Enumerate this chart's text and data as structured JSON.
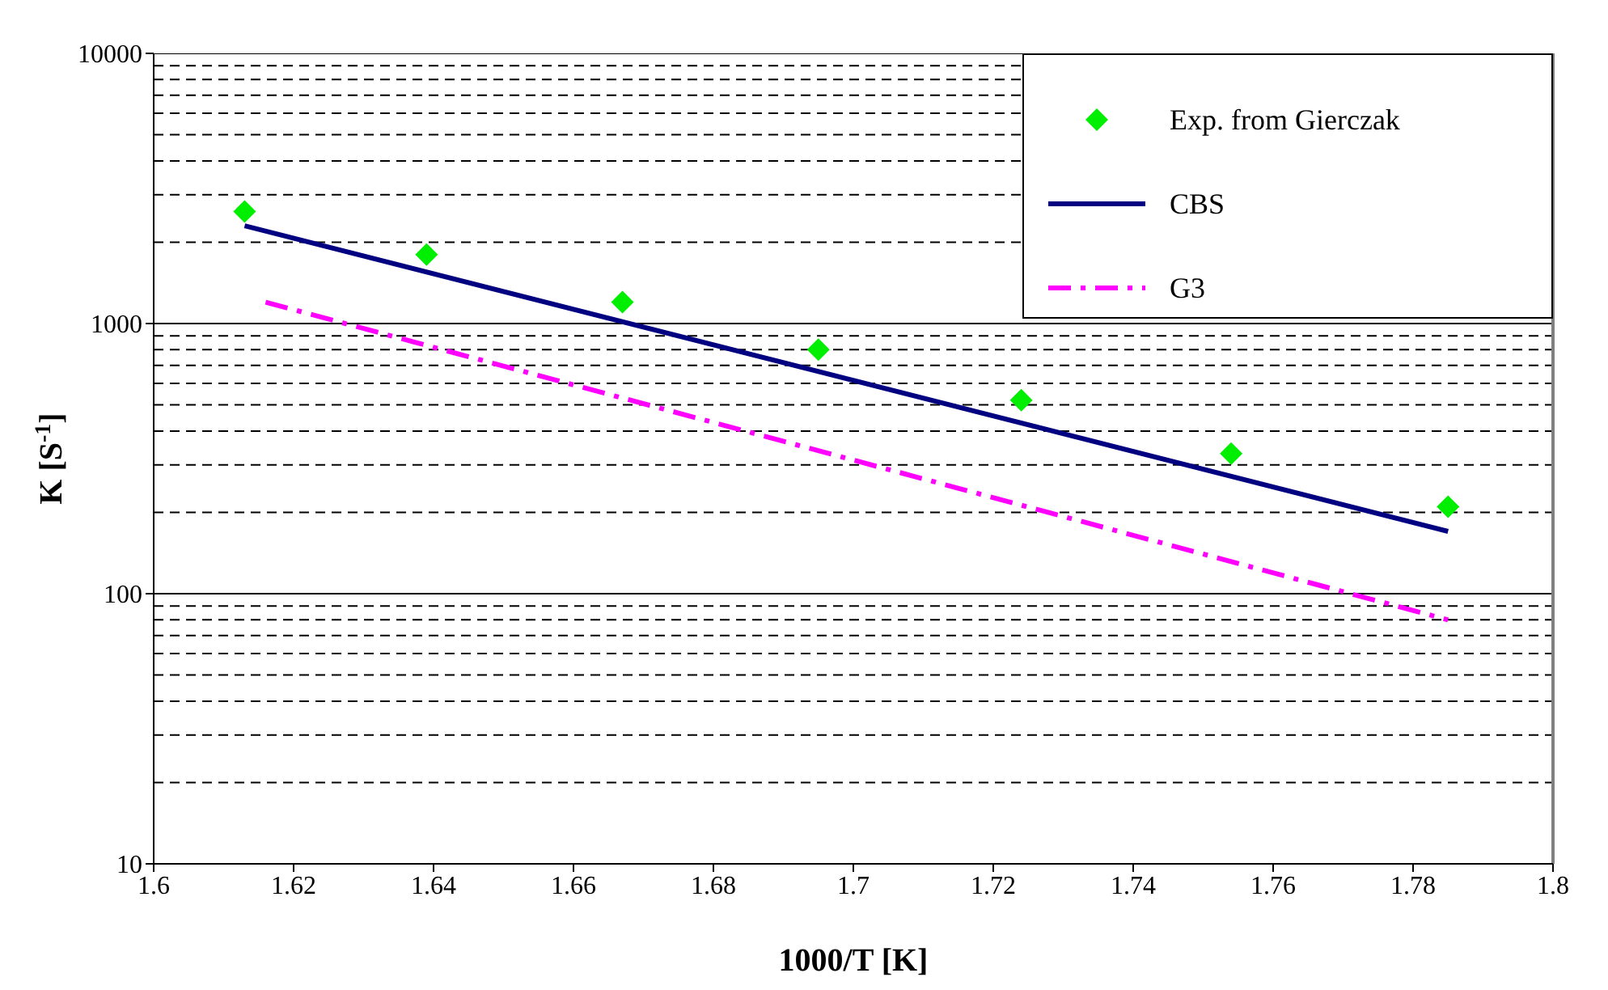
{
  "chart_data": {
    "type": "line",
    "xlabel": "1000/T [K]",
    "ylabel": "K [S$^{-1}$]",
    "xlim": [
      1.6,
      1.8
    ],
    "xticks": [
      1.6,
      1.62,
      1.64,
      1.66,
      1.68,
      1.7,
      1.72,
      1.74,
      1.76,
      1.78,
      1.8
    ],
    "log": "y",
    "ylim": [
      10,
      10000
    ],
    "yticks": [
      10,
      {
        "value": 20,
        "label": null
      },
      {
        "value": 30,
        "label": null
      },
      {
        "value": 40,
        "label": null
      },
      {
        "value": 50,
        "label": null
      },
      {
        "value": 60,
        "label": null
      },
      {
        "value": 70,
        "label": null
      },
      {
        "value": 80,
        "label": null
      },
      {
        "value": 90,
        "label": null
      },
      100,
      {
        "value": 200,
        "label": null
      },
      {
        "value": 300,
        "label": null
      },
      {
        "value": 400,
        "label": null
      },
      {
        "value": 500,
        "label": null
      },
      {
        "value": 600,
        "label": null
      },
      {
        "value": 700,
        "label": null
      },
      {
        "value": 800,
        "label": null
      },
      {
        "value": 900,
        "label": null
      },
      1000,
      {
        "value": 2000,
        "label": null
      },
      {
        "value": 3000,
        "label": null
      },
      {
        "value": 4000,
        "label": null
      },
      {
        "value": 5000,
        "label": null
      },
      {
        "value": 6000,
        "label": null
      },
      {
        "value": 7000,
        "label": null
      },
      {
        "value": 8000,
        "label": null
      },
      {
        "value": 9000,
        "label": null
      },
      10000
    ],
    "grid": "y",
    "legend": "top right",
    "series": [
      {
        "name": "Exp. from Gierczak",
        "type": "scatter",
        "marker": "diamond",
        "color": "#00ee00",
        "x": [
          1.613,
          1.639,
          1.667,
          1.695,
          1.724,
          1.754,
          1.785
        ],
        "values": [
          2600,
          1800,
          1200,
          800,
          520,
          330,
          210
        ]
      },
      {
        "name": "CBS",
        "type": "line",
        "line_style": "solid",
        "color": "#000080",
        "x": [
          1.613,
          1.785
        ],
        "values": [
          2300,
          170
        ]
      },
      {
        "name": "G3",
        "type": "line",
        "line_style": "dashed",
        "color": "#ff00ff",
        "x": [
          1.616,
          1.785
        ],
        "values": [
          1200,
          80
        ]
      }
    ]
  }
}
